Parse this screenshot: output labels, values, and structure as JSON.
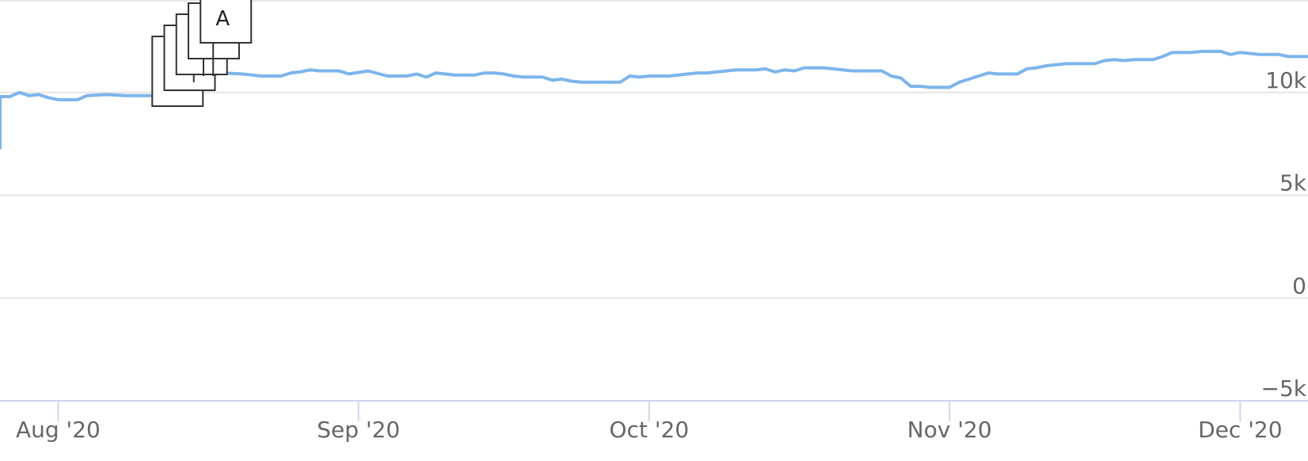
{
  "chart_data": {
    "type": "line",
    "title": "",
    "xlabel": "",
    "ylabel": "",
    "ylim": [
      -5000,
      14500
    ],
    "y_ticks": [
      {
        "value": 10000,
        "label": "10k"
      },
      {
        "value": 5000,
        "label": "5k"
      },
      {
        "value": 0,
        "label": "0"
      },
      {
        "value": -5000,
        "label": "−5k"
      }
    ],
    "x_ticks": [
      {
        "date": "2020-08-01",
        "label": "Aug '20"
      },
      {
        "date": "2020-09-01",
        "label": "Sep '20"
      },
      {
        "date": "2020-10-01",
        "label": "Oct '20"
      },
      {
        "date": "2020-11-01",
        "label": "Nov '20"
      },
      {
        "date": "2020-12-01",
        "label": "Dec '20"
      }
    ],
    "xlim": [
      "2020-07-26",
      "2020-12-08"
    ],
    "grid": true,
    "line_color": "#7cb5ec",
    "series": [
      {
        "points": [
          [
            "2020-07-26",
            7300
          ],
          [
            "2020-07-26",
            9800
          ],
          [
            "2020-07-27",
            9800
          ],
          [
            "2020-07-28",
            10000
          ],
          [
            "2020-07-29",
            9850
          ],
          [
            "2020-07-30",
            9900
          ],
          [
            "2020-07-31",
            9750
          ],
          [
            "2020-08-01",
            9650
          ],
          [
            "2020-08-03",
            9650
          ],
          [
            "2020-08-04",
            9850
          ],
          [
            "2020-08-06",
            9900
          ],
          [
            "2020-08-08",
            9850
          ],
          [
            "2020-08-10",
            9850
          ],
          [
            "2020-08-11",
            9850
          ],
          [
            "2020-08-12",
            9950
          ],
          [
            "2020-08-13",
            10400
          ],
          [
            "2020-08-14",
            10400
          ],
          [
            "2020-08-15",
            10500
          ],
          [
            "2020-08-16",
            10800
          ],
          [
            "2020-08-18",
            10950
          ],
          [
            "2020-08-20",
            10900
          ],
          [
            "2020-08-22",
            10800
          ],
          [
            "2020-08-24",
            10800
          ],
          [
            "2020-08-25",
            10950
          ],
          [
            "2020-08-26",
            11000
          ],
          [
            "2020-08-27",
            11100
          ],
          [
            "2020-08-28",
            11050
          ],
          [
            "2020-08-30",
            11050
          ],
          [
            "2020-08-31",
            10900
          ],
          [
            "2020-09-02",
            11050
          ],
          [
            "2020-09-04",
            10800
          ],
          [
            "2020-09-06",
            10800
          ],
          [
            "2020-09-07",
            10900
          ],
          [
            "2020-09-08",
            10750
          ],
          [
            "2020-09-09",
            10950
          ],
          [
            "2020-09-11",
            10850
          ],
          [
            "2020-09-13",
            10850
          ],
          [
            "2020-09-14",
            10950
          ],
          [
            "2020-09-15",
            10950
          ],
          [
            "2020-09-16",
            10900
          ],
          [
            "2020-09-17",
            10800
          ],
          [
            "2020-09-18",
            10750
          ],
          [
            "2020-09-20",
            10750
          ],
          [
            "2020-09-21",
            10600
          ],
          [
            "2020-09-22",
            10650
          ],
          [
            "2020-09-23",
            10550
          ],
          [
            "2020-09-24",
            10500
          ],
          [
            "2020-09-28",
            10500
          ],
          [
            "2020-09-29",
            10800
          ],
          [
            "2020-09-30",
            10750
          ],
          [
            "2020-10-01",
            10800
          ],
          [
            "2020-10-03",
            10800
          ],
          [
            "2020-10-04",
            10850
          ],
          [
            "2020-10-05",
            10900
          ],
          [
            "2020-10-06",
            10950
          ],
          [
            "2020-10-07",
            10950
          ],
          [
            "2020-10-08",
            11000
          ],
          [
            "2020-10-09",
            11050
          ],
          [
            "2020-10-10",
            11100
          ],
          [
            "2020-10-11",
            11100
          ],
          [
            "2020-10-12",
            11100
          ],
          [
            "2020-10-13",
            11150
          ],
          [
            "2020-10-14",
            11000
          ],
          [
            "2020-10-15",
            11100
          ],
          [
            "2020-10-16",
            11050
          ],
          [
            "2020-10-17",
            11200
          ],
          [
            "2020-10-18",
            11200
          ],
          [
            "2020-10-19",
            11200
          ],
          [
            "2020-10-20",
            11150
          ],
          [
            "2020-10-21",
            11100
          ],
          [
            "2020-10-22",
            11050
          ],
          [
            "2020-10-23",
            11050
          ],
          [
            "2020-10-24",
            11050
          ],
          [
            "2020-10-25",
            11050
          ],
          [
            "2020-10-26",
            10800
          ],
          [
            "2020-10-27",
            10700
          ],
          [
            "2020-10-28",
            10300
          ],
          [
            "2020-10-29",
            10300
          ],
          [
            "2020-10-30",
            10250
          ],
          [
            "2020-11-01",
            10250
          ],
          [
            "2020-11-02",
            10500
          ],
          [
            "2020-11-03",
            10650
          ],
          [
            "2020-11-04",
            10800
          ],
          [
            "2020-11-05",
            10950
          ],
          [
            "2020-11-06",
            10900
          ],
          [
            "2020-11-08",
            10900
          ],
          [
            "2020-11-09",
            11150
          ],
          [
            "2020-11-10",
            11200
          ],
          [
            "2020-11-11",
            11300
          ],
          [
            "2020-11-12",
            11350
          ],
          [
            "2020-11-13",
            11400
          ],
          [
            "2020-11-16",
            11400
          ],
          [
            "2020-11-17",
            11550
          ],
          [
            "2020-11-18",
            11600
          ],
          [
            "2020-11-19",
            11550
          ],
          [
            "2020-11-20",
            11600
          ],
          [
            "2020-11-22",
            11600
          ],
          [
            "2020-11-23",
            11750
          ],
          [
            "2020-11-24",
            11950
          ],
          [
            "2020-11-25",
            11950
          ],
          [
            "2020-11-26",
            11950
          ],
          [
            "2020-11-27",
            12000
          ],
          [
            "2020-11-28",
            12000
          ],
          [
            "2020-11-29",
            12000
          ],
          [
            "2020-11-30",
            11850
          ],
          [
            "2020-12-01",
            11950
          ],
          [
            "2020-12-02",
            11900
          ],
          [
            "2020-12-03",
            11850
          ],
          [
            "2020-12-05",
            11850
          ],
          [
            "2020-12-06",
            11750
          ],
          [
            "2020-12-08",
            11750
          ]
        ]
      }
    ],
    "flags": [
      {
        "date": "2020-08-13",
        "text": "A"
      },
      {
        "date": "2020-08-14",
        "text": "A"
      },
      {
        "date": "2020-08-15",
        "text": "A"
      },
      {
        "date": "2020-08-16",
        "text": "A"
      },
      {
        "date": "2020-08-17",
        "text": "A"
      }
    ]
  }
}
